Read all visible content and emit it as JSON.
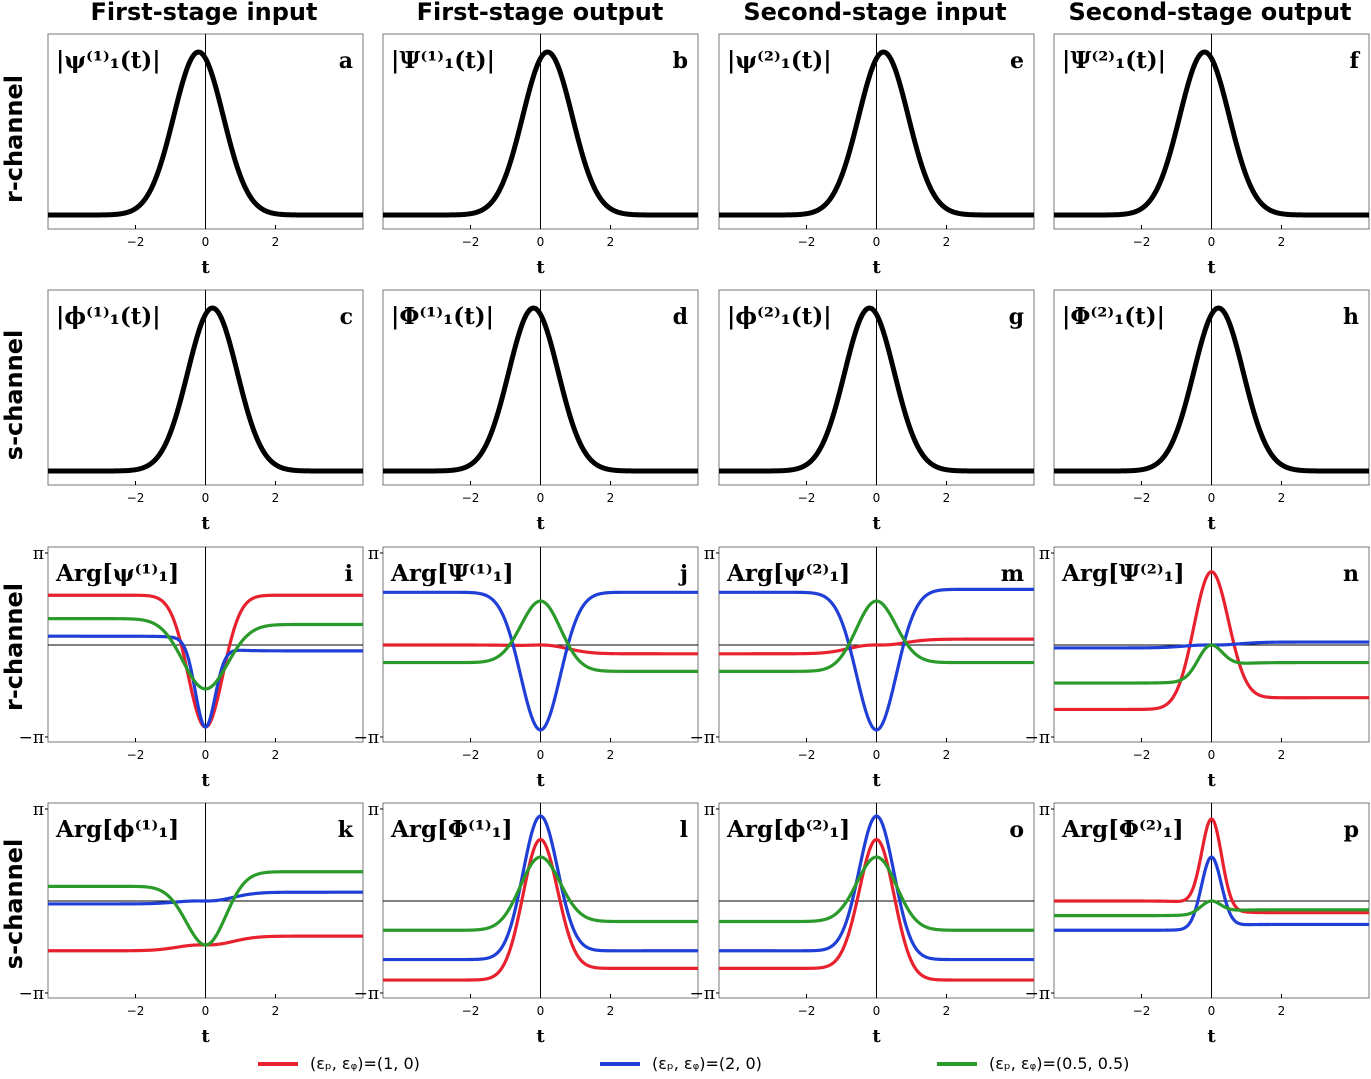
{
  "columns": [
    "First-stage input",
    "First-stage output",
    "Second-stage input",
    "Second-stage output"
  ],
  "rows": [
    "r-channel",
    "s-channel",
    "r-channel",
    "s-channel"
  ],
  "colors": {
    "red": "#e8212f",
    "blue": "#1f3fd6",
    "green": "#2a9a2a",
    "black": "#000000"
  },
  "legend": [
    {
      "label": "(εₚ, εᵩ)=(1, 0)",
      "color": "#e8212f"
    },
    {
      "label": "(εₚ, εᵩ)=(2, 0)",
      "color": "#1f3fd6"
    },
    {
      "label": "(εₚ, εᵩ)=(0.5, 0.5)",
      "color": "#2a9a2a"
    }
  ],
  "chart_data": {
    "type": "line",
    "xlabel": "t",
    "xlim": [
      -4.5,
      4.5
    ],
    "xticks": [
      -2,
      0,
      2
    ],
    "xtick_labels": [
      "−2",
      "0",
      "2"
    ],
    "phase_ylim": [
      -3.1416,
      3.1416
    ],
    "phase_ytick_labels": [
      "π",
      "−π"
    ],
    "panels": [
      {
        "letter": "a",
        "label": "|ψ⁽¹⁾₁(t)|",
        "kind": "magnitude",
        "peak_t": -0.2
      },
      {
        "letter": "b",
        "label": "|Ψ⁽¹⁾₁(t)|",
        "kind": "magnitude",
        "peak_t": 0.2
      },
      {
        "letter": "e",
        "label": "|ψ⁽²⁾₁(t)|",
        "kind": "magnitude",
        "peak_t": 0.2
      },
      {
        "letter": "f",
        "label": "|Ψ⁽²⁾₁(t)|",
        "kind": "magnitude",
        "peak_t": -0.2
      },
      {
        "letter": "c",
        "label": "|ϕ⁽¹⁾₁(t)|",
        "kind": "magnitude",
        "peak_t": 0.2
      },
      {
        "letter": "d",
        "label": "|Φ⁽¹⁾₁(t)|",
        "kind": "magnitude",
        "peak_t": -0.2
      },
      {
        "letter": "g",
        "label": "|ϕ⁽²⁾₁(t)|",
        "kind": "magnitude",
        "peak_t": -0.2
      },
      {
        "letter": "h",
        "label": "|Φ⁽²⁾₁(t)|",
        "kind": "magnitude",
        "peak_t": 0.2
      },
      {
        "letter": "i",
        "label": "Arg[ψ⁽¹⁾₁]",
        "kind": "phase",
        "series": [
          {
            "name": "(1, 0)",
            "color": "red",
            "base_left": 1.7,
            "base_right": 1.7,
            "center": -2.8,
            "width": 0.7
          },
          {
            "name": "(2, 0)",
            "color": "blue",
            "base_left": 0.3,
            "base_right": -0.2,
            "center": -2.8,
            "width": 0.4,
            "wrap": true
          },
          {
            "name": "(0.5, 0.5)",
            "color": "green",
            "base_left": 0.9,
            "base_right": 0.7,
            "center": -1.5,
            "width": 0.9
          }
        ]
      },
      {
        "letter": "j",
        "label": "Arg[Ψ⁽¹⁾₁]",
        "kind": "phase",
        "series": [
          {
            "name": "(1, 0)",
            "color": "red",
            "base_left": 0.0,
            "base_right": -0.3,
            "center": 0.0,
            "width": 1.0
          },
          {
            "name": "(2, 0)",
            "color": "blue",
            "base_left": 1.8,
            "base_right": 1.8,
            "center": -2.9,
            "width": 0.8
          },
          {
            "name": "(0.5, 0.5)",
            "color": "green",
            "base_left": -0.6,
            "base_right": -0.9,
            "center": 1.5,
            "width": 0.8
          }
        ]
      },
      {
        "letter": "m",
        "label": "Arg[ψ⁽²⁾₁]",
        "kind": "phase",
        "series": [
          {
            "name": "(1, 0)",
            "color": "red",
            "base_left": -0.3,
            "base_right": 0.2,
            "center": 0.0,
            "width": 1.0
          },
          {
            "name": "(2, 0)",
            "color": "blue",
            "base_left": 1.8,
            "base_right": 1.9,
            "center": -2.9,
            "width": 0.8
          },
          {
            "name": "(0.5, 0.5)",
            "color": "green",
            "base_left": -0.9,
            "base_right": -0.6,
            "center": 1.5,
            "width": 0.8
          }
        ]
      },
      {
        "letter": "n",
        "label": "Arg[Ψ⁽²⁾₁]",
        "kind": "phase",
        "series": [
          {
            "name": "(1, 0)",
            "color": "red",
            "base_left": -2.2,
            "base_right": -1.8,
            "center": 2.5,
            "width": 0.7
          },
          {
            "name": "(2, 0)",
            "color": "blue",
            "base_left": -0.1,
            "base_right": 0.1,
            "center": 0.0,
            "width": 1.0
          },
          {
            "name": "(0.5, 0.5)",
            "color": "green",
            "base_left": -1.3,
            "base_right": -0.6,
            "center": 0.0,
            "width": 0.5,
            "wrap": true
          }
        ]
      },
      {
        "letter": "k",
        "label": "Arg[ϕ⁽¹⁾₁]",
        "kind": "phase",
        "series": [
          {
            "name": "(1, 0)",
            "color": "red",
            "base_left": -1.7,
            "base_right": -1.2,
            "center": -1.5,
            "width": 1.0
          },
          {
            "name": "(2, 0)",
            "color": "blue",
            "base_left": -0.1,
            "base_right": 0.3,
            "center": 0.0,
            "width": 1.0
          },
          {
            "name": "(0.5, 0.5)",
            "color": "green",
            "base_left": 0.5,
            "base_right": 1.0,
            "center": -1.5,
            "width": 0.8
          }
        ]
      },
      {
        "letter": "l",
        "label": "Arg[Φ⁽¹⁾₁]",
        "kind": "phase",
        "series": [
          {
            "name": "(1, 0)",
            "color": "red",
            "base_left": -2.7,
            "base_right": -2.3,
            "center": 2.1,
            "width": 0.7
          },
          {
            "name": "(2, 0)",
            "color": "blue",
            "base_left": -2.0,
            "base_right": -1.7,
            "center": 2.9,
            "width": 0.7
          },
          {
            "name": "(0.5, 0.5)",
            "color": "green",
            "base_left": -1.0,
            "base_right": -0.7,
            "center": 1.5,
            "width": 0.8
          }
        ]
      },
      {
        "letter": "o",
        "label": "Arg[ϕ⁽²⁾₁]",
        "kind": "phase",
        "series": [
          {
            "name": "(1, 0)",
            "color": "red",
            "base_left": -2.3,
            "base_right": -2.7,
            "center": 2.1,
            "width": 0.7
          },
          {
            "name": "(2, 0)",
            "color": "blue",
            "base_left": -1.7,
            "base_right": -2.0,
            "center": 2.9,
            "width": 0.7
          },
          {
            "name": "(0.5, 0.5)",
            "color": "green",
            "base_left": -0.7,
            "base_right": -1.0,
            "center": 1.5,
            "width": 0.8
          }
        ]
      },
      {
        "letter": "p",
        "label": "Arg[Φ⁽²⁾₁]",
        "kind": "phase",
        "series": [
          {
            "name": "(1, 0)",
            "color": "red",
            "base_left": 0.0,
            "base_right": -0.4,
            "center": 2.8,
            "width": 0.4,
            "wrap": true
          },
          {
            "name": "(2, 0)",
            "color": "blue",
            "base_left": -1.0,
            "base_right": -0.8,
            "center": 1.5,
            "width": 0.4,
            "wrap": true
          },
          {
            "name": "(0.5, 0.5)",
            "color": "green",
            "base_left": -0.5,
            "base_right": -0.3,
            "center": 0.0,
            "width": 0.4,
            "wrap": true
          }
        ]
      }
    ]
  }
}
